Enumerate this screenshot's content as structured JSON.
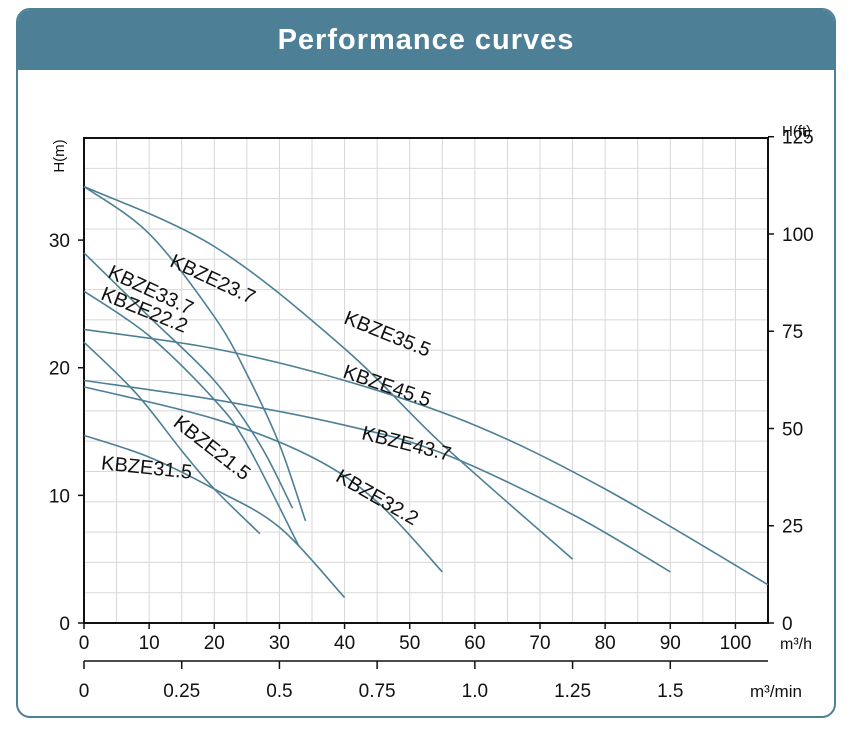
{
  "title": "Performance curves",
  "chart_data": {
    "type": "line",
    "title": "Performance curves",
    "ylabel_left": "H(m)",
    "ylabel_right": "H(ft)",
    "xlabel_primary": "m³/h",
    "xlabel_secondary": "m³/min",
    "xlim": [
      0,
      105
    ],
    "ylim": [
      0,
      38
    ],
    "x_ticks": [
      "0",
      "10",
      "20",
      "30",
      "40",
      "50",
      "60",
      "70",
      "80",
      "90",
      "100"
    ],
    "y_ticks_left": [
      "0",
      "10",
      "20",
      "30"
    ],
    "y_ticks_right": [
      "0",
      "25",
      "50",
      "75",
      "100",
      "125"
    ],
    "x_ticks_secondary": [
      "0",
      "0.25",
      "0.5",
      "0.75",
      "1.0",
      "1.25",
      "1.5"
    ],
    "grid": true,
    "line_color": "#4d7f96",
    "series": [
      {
        "name": "KBZE23.7",
        "x": [
          0,
          10,
          20,
          25,
          30,
          34
        ],
        "y": [
          34.2,
          30.5,
          24,
          19.5,
          14,
          8
        ]
      },
      {
        "name": "KBZE33.7",
        "x": [
          0,
          10,
          20,
          27,
          32
        ],
        "y": [
          29,
          24,
          19,
          14,
          9
        ]
      },
      {
        "name": "KBZE22.2",
        "x": [
          0,
          10,
          20,
          25,
          33
        ],
        "y": [
          26,
          22.5,
          17.5,
          14,
          6
        ]
      },
      {
        "name": "KBZE35.5",
        "x": [
          0,
          20,
          40,
          55,
          75
        ],
        "y": [
          34.2,
          29.5,
          21.5,
          14,
          5
        ]
      },
      {
        "name": "KBZE45.5",
        "x": [
          0,
          20,
          40,
          60,
          80,
          105
        ],
        "y": [
          23,
          21.5,
          19,
          15.5,
          10.5,
          3
        ]
      },
      {
        "name": "KBZE43.7",
        "x": [
          0,
          20,
          40,
          55,
          75,
          90
        ],
        "y": [
          19,
          17.5,
          15.5,
          13.3,
          8.5,
          4
        ]
      },
      {
        "name": "KBZE32.2",
        "x": [
          0,
          20,
          35,
          45,
          55
        ],
        "y": [
          18.5,
          16,
          13,
          9.5,
          4
        ]
      },
      {
        "name": "KBZE21.5",
        "x": [
          0,
          8,
          15,
          20,
          27
        ],
        "y": [
          22,
          18,
          13.5,
          10.5,
          7
        ]
      },
      {
        "name": "KBZE31.5",
        "x": [
          0,
          10,
          20,
          30,
          40
        ],
        "y": [
          14.7,
          13,
          10.5,
          7.5,
          2
        ]
      }
    ]
  }
}
